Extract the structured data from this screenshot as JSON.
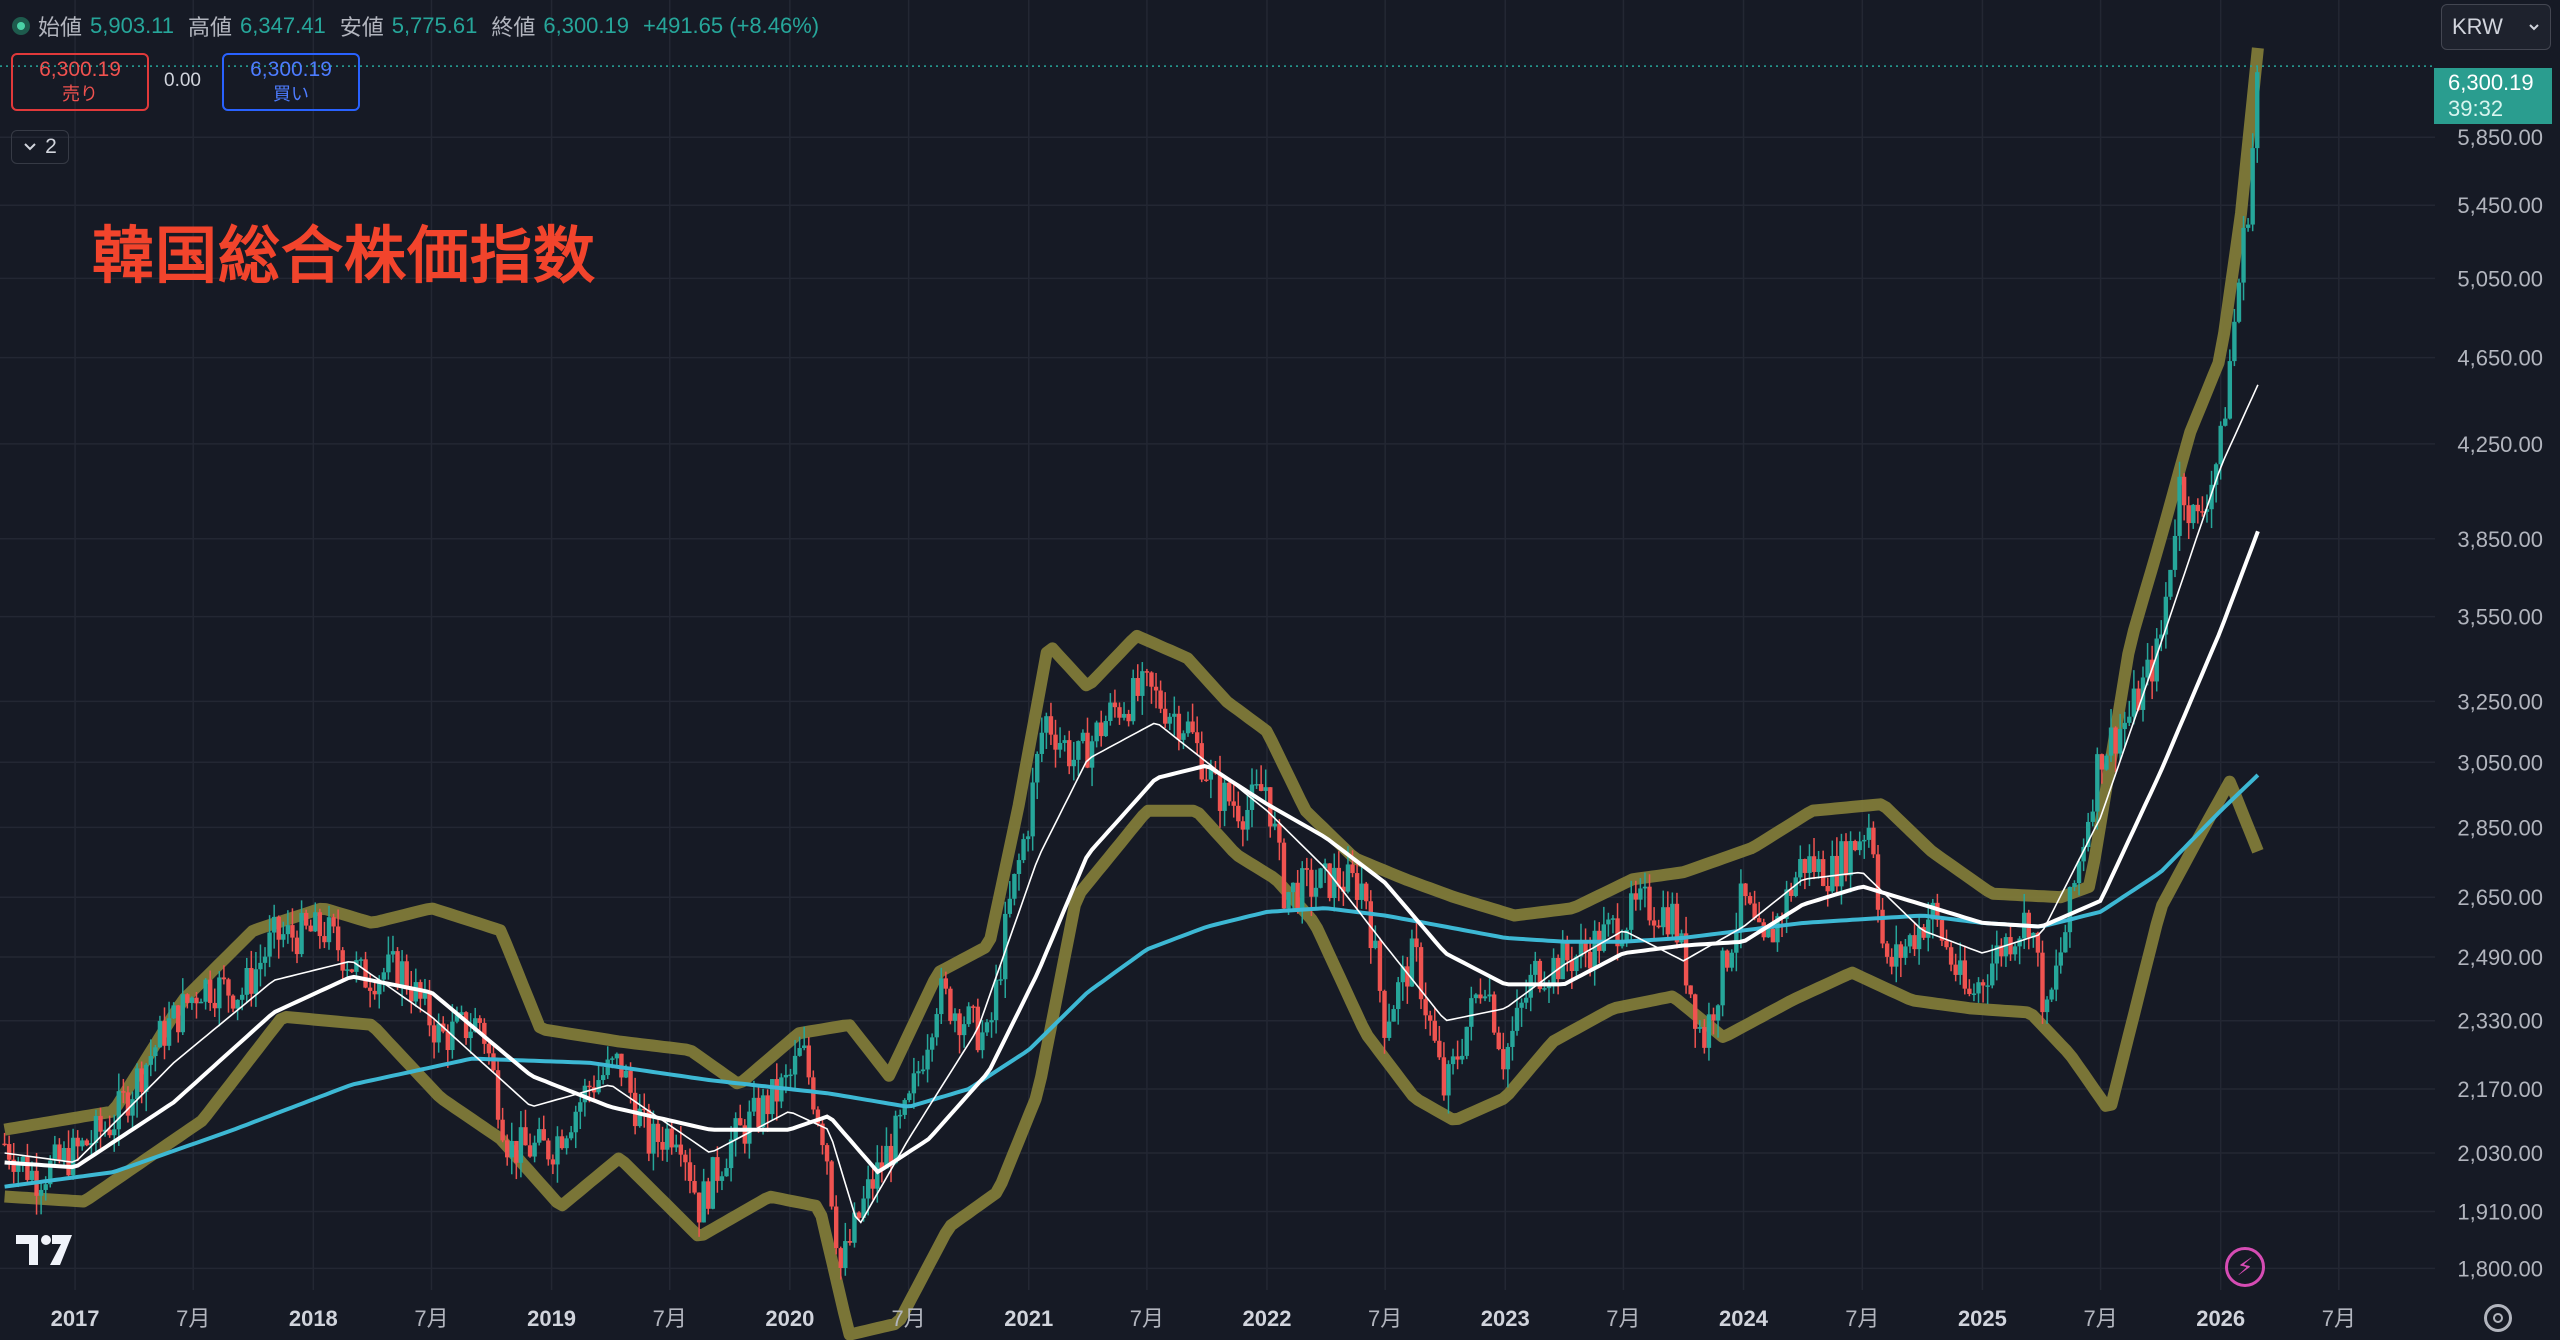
{
  "header": {
    "open_label": "始値",
    "open": "5,903.11",
    "high_label": "高値",
    "high": "6,347.41",
    "low_label": "安値",
    "low": "5,775.61",
    "close_label": "終値",
    "close": "6,300.19",
    "change": "+491.65 (+8.46%)"
  },
  "trade": {
    "sell_price": "6,300.19",
    "sell_label": "売り",
    "spread": "0.00",
    "buy_price": "6,300.19",
    "buy_label": "買い"
  },
  "collapse_count": "2",
  "currency": "KRW",
  "last_price_label": {
    "price": "6,300.19",
    "countdown": "39:32"
  },
  "colors": {
    "background": "#161a25",
    "grid": "#232733",
    "up": "#26a69a",
    "down": "#ef5350",
    "band": "#85803a",
    "ma200": "#3db8d4",
    "ma": "#ffffff",
    "title": "#f2442c"
  },
  "chart_data": {
    "type": "candlestick",
    "title": "韓国総合株価指数",
    "y_scale": "log",
    "ylim": [
      1760,
      6420
    ],
    "y_ticks": [
      6300.19,
      5850,
      5450,
      5050,
      4650,
      4250,
      3850,
      3550,
      3250,
      3050,
      2850,
      2650,
      2490,
      2330,
      2170,
      2030,
      1910,
      1800
    ],
    "y_tick_labels": [
      "",
      "5,850.00",
      "5,450.00",
      "5,050.00",
      "4,650.00",
      "4,250.00",
      "3,850.00",
      "3,550.00",
      "3,250.00",
      "3,050.00",
      "2,850.00",
      "2,650.00",
      "2,490.00",
      "2,330.00",
      "2,170.00",
      "2,030.00",
      "1,910.00",
      "1,800.00"
    ],
    "x_ticks": [
      {
        "date": "2017-01-01",
        "label": "2017",
        "bold": true
      },
      {
        "date": "2017-07-01",
        "label": "7月",
        "bold": false
      },
      {
        "date": "2018-01-01",
        "label": "2018",
        "bold": true
      },
      {
        "date": "2018-07-01",
        "label": "7月",
        "bold": false
      },
      {
        "date": "2019-01-01",
        "label": "2019",
        "bold": true
      },
      {
        "date": "2019-07-01",
        "label": "7月",
        "bold": false
      },
      {
        "date": "2020-01-01",
        "label": "2020",
        "bold": true
      },
      {
        "date": "2020-07-01",
        "label": "7月",
        "bold": false
      },
      {
        "date": "2021-01-01",
        "label": "2021",
        "bold": true
      },
      {
        "date": "2021-07-01",
        "label": "7月",
        "bold": false
      },
      {
        "date": "2022-01-01",
        "label": "2022",
        "bold": true
      },
      {
        "date": "2022-07-01",
        "label": "7月",
        "bold": false
      },
      {
        "date": "2023-01-01",
        "label": "2023",
        "bold": true
      },
      {
        "date": "2023-07-01",
        "label": "7月",
        "bold": false
      },
      {
        "date": "2024-01-01",
        "label": "2024",
        "bold": true
      },
      {
        "date": "2024-07-01",
        "label": "7月",
        "bold": false
      },
      {
        "date": "2025-01-01",
        "label": "2025",
        "bold": true
      },
      {
        "date": "2025-07-01",
        "label": "7月",
        "bold": false
      },
      {
        "date": "2026-01-01",
        "label": "2026",
        "bold": true
      },
      {
        "date": "2026-07-01",
        "label": "7月",
        "bold": false
      }
    ],
    "x_range": [
      "2016-09-08",
      "2026-11-10"
    ],
    "last_close": 6300.19,
    "close_series": [
      [
        "2016-09-15",
        2050
      ],
      [
        "2016-11-01",
        1980
      ],
      [
        "2017-01-01",
        2030
      ],
      [
        "2017-03-01",
        2100
      ],
      [
        "2017-05-15",
        2300
      ],
      [
        "2017-07-15",
        2420
      ],
      [
        "2017-09-15",
        2400
      ],
      [
        "2017-11-01",
        2540
      ],
      [
        "2018-01-20",
        2560
      ],
      [
        "2018-03-15",
        2440
      ],
      [
        "2018-05-15",
        2460
      ],
      [
        "2018-07-15",
        2290
      ],
      [
        "2018-09-15",
        2330
      ],
      [
        "2018-10-28",
        2040
      ],
      [
        "2018-12-31",
        2040
      ],
      [
        "2019-03-01",
        2180
      ],
      [
        "2019-04-15",
        2230
      ],
      [
        "2019-05-31",
        2050
      ],
      [
        "2019-07-15",
        2090
      ],
      [
        "2019-08-15",
        1920
      ],
      [
        "2019-10-01",
        2050
      ],
      [
        "2019-12-31",
        2190
      ],
      [
        "2020-01-20",
        2260
      ],
      [
        "2020-02-25",
        2050
      ],
      [
        "2020-03-19",
        1800
      ],
      [
        "2020-04-30",
        1950
      ],
      [
        "2020-06-30",
        2120
      ],
      [
        "2020-08-15",
        2400
      ],
      [
        "2020-10-31",
        2280
      ],
      [
        "2020-11-30",
        2600
      ],
      [
        "2020-12-31",
        2870
      ],
      [
        "2021-01-25",
        3200
      ],
      [
        "2021-03-15",
        3050
      ],
      [
        "2021-05-10",
        3220
      ],
      [
        "2021-06-30",
        3290
      ],
      [
        "2021-08-31",
        3170
      ],
      [
        "2021-10-15",
        2960
      ],
      [
        "2021-11-30",
        2900
      ],
      [
        "2021-12-31",
        2980
      ],
      [
        "2022-01-28",
        2660
      ],
      [
        "2022-04-15",
        2700
      ],
      [
        "2022-05-31",
        2680
      ],
      [
        "2022-06-30",
        2330
      ],
      [
        "2022-08-15",
        2500
      ],
      [
        "2022-09-30",
        2160
      ],
      [
        "2022-11-30",
        2450
      ],
      [
        "2022-12-30",
        2240
      ],
      [
        "2023-02-15",
        2450
      ],
      [
        "2023-04-30",
        2500
      ],
      [
        "2023-07-31",
        2630
      ],
      [
        "2023-09-15",
        2600
      ],
      [
        "2023-10-31",
        2280
      ],
      [
        "2023-12-31",
        2650
      ],
      [
        "2024-01-31",
        2500
      ],
      [
        "2024-03-31",
        2750
      ],
      [
        "2024-05-15",
        2720
      ],
      [
        "2024-07-15",
        2870
      ],
      [
        "2024-08-05",
        2450
      ],
      [
        "2024-10-15",
        2610
      ],
      [
        "2024-12-10",
        2380
      ],
      [
        "2025-01-31",
        2520
      ],
      [
        "2025-03-15",
        2600
      ],
      [
        "2025-04-09",
        2330
      ],
      [
        "2025-05-15",
        2620
      ],
      [
        "2025-06-30",
        3080
      ],
      [
        "2025-08-15",
        3200
      ],
      [
        "2025-09-30",
        3440
      ],
      [
        "2025-10-31",
        4100
      ],
      [
        "2025-11-25",
        3900
      ],
      [
        "2025-12-31",
        4220
      ],
      [
        "2026-01-31",
        5100
      ],
      [
        "2026-02-15",
        5550
      ],
      [
        "2026-02-27",
        6300.19
      ]
    ],
    "ma200_series": [
      [
        "2016-09-15",
        1960
      ],
      [
        "2017-03-01",
        1990
      ],
      [
        "2017-09-01",
        2080
      ],
      [
        "2018-03-01",
        2180
      ],
      [
        "2018-09-01",
        2240
      ],
      [
        "2019-03-01",
        2230
      ],
      [
        "2019-09-01",
        2190
      ],
      [
        "2020-03-01",
        2160
      ],
      [
        "2020-07-01",
        2130
      ],
      [
        "2020-10-01",
        2170
      ],
      [
        "2021-01-01",
        2260
      ],
      [
        "2021-04-01",
        2400
      ],
      [
        "2021-07-01",
        2510
      ],
      [
        "2021-10-01",
        2570
      ],
      [
        "2022-01-01",
        2610
      ],
      [
        "2022-04-01",
        2620
      ],
      [
        "2022-07-01",
        2600
      ],
      [
        "2022-10-01",
        2570
      ],
      [
        "2023-01-01",
        2540
      ],
      [
        "2023-04-01",
        2530
      ],
      [
        "2023-07-01",
        2530
      ],
      [
        "2023-10-01",
        2540
      ],
      [
        "2024-01-01",
        2560
      ],
      [
        "2024-04-01",
        2580
      ],
      [
        "2024-07-01",
        2590
      ],
      [
        "2024-10-01",
        2600
      ],
      [
        "2025-01-01",
        2580
      ],
      [
        "2025-04-01",
        2570
      ],
      [
        "2025-07-01",
        2610
      ],
      [
        "2025-10-01",
        2720
      ],
      [
        "2026-01-01",
        2900
      ],
      [
        "2026-02-27",
        3010
      ]
    ],
    "ma_slow_series": [
      [
        "2016-09-15",
        2010
      ],
      [
        "2017-01-01",
        2000
      ],
      [
        "2017-06-01",
        2140
      ],
      [
        "2017-11-01",
        2350
      ],
      [
        "2018-03-01",
        2440
      ],
      [
        "2018-07-01",
        2400
      ],
      [
        "2018-12-01",
        2200
      ],
      [
        "2019-04-01",
        2130
      ],
      [
        "2019-09-01",
        2080
      ],
      [
        "2019-12-31",
        2080
      ],
      [
        "2020-03-01",
        2110
      ],
      [
        "2020-05-15",
        1990
      ],
      [
        "2020-08-01",
        2060
      ],
      [
        "2020-11-01",
        2210
      ],
      [
        "2021-01-15",
        2450
      ],
      [
        "2021-04-01",
        2770
      ],
      [
        "2021-07-15",
        3000
      ],
      [
        "2021-10-01",
        3040
      ],
      [
        "2022-01-01",
        2920
      ],
      [
        "2022-04-01",
        2820
      ],
      [
        "2022-07-01",
        2690
      ],
      [
        "2022-10-01",
        2500
      ],
      [
        "2023-01-01",
        2420
      ],
      [
        "2023-04-01",
        2420
      ],
      [
        "2023-07-01",
        2500
      ],
      [
        "2023-10-01",
        2520
      ],
      [
        "2024-01-01",
        2530
      ],
      [
        "2024-04-01",
        2630
      ],
      [
        "2024-07-01",
        2680
      ],
      [
        "2024-10-01",
        2630
      ],
      [
        "2025-01-01",
        2580
      ],
      [
        "2025-04-01",
        2570
      ],
      [
        "2025-07-01",
        2640
      ],
      [
        "2025-10-01",
        3020
      ],
      [
        "2026-01-01",
        3500
      ],
      [
        "2026-02-27",
        3880
      ]
    ],
    "ma_fast_series": [
      [
        "2016-09-15",
        2030
      ],
      [
        "2017-01-01",
        2010
      ],
      [
        "2017-06-01",
        2230
      ],
      [
        "2017-11-01",
        2430
      ],
      [
        "2018-03-01",
        2480
      ],
      [
        "2018-07-01",
        2340
      ],
      [
        "2018-12-01",
        2130
      ],
      [
        "2019-04-01",
        2180
      ],
      [
        "2019-09-01",
        2030
      ],
      [
        "2019-12-31",
        2120
      ],
      [
        "2020-03-01",
        2080
      ],
      [
        "2020-04-15",
        1880
      ],
      [
        "2020-07-01",
        2060
      ],
      [
        "2020-10-15",
        2310
      ],
      [
        "2021-01-15",
        2760
      ],
      [
        "2021-04-01",
        3060
      ],
      [
        "2021-07-15",
        3180
      ],
      [
        "2021-10-01",
        3050
      ],
      [
        "2022-01-01",
        2900
      ],
      [
        "2022-04-01",
        2730
      ],
      [
        "2022-07-01",
        2520
      ],
      [
        "2022-10-01",
        2330
      ],
      [
        "2023-01-01",
        2360
      ],
      [
        "2023-04-01",
        2470
      ],
      [
        "2023-07-01",
        2560
      ],
      [
        "2023-10-01",
        2480
      ],
      [
        "2024-01-01",
        2570
      ],
      [
        "2024-04-01",
        2700
      ],
      [
        "2024-07-01",
        2720
      ],
      [
        "2024-10-01",
        2560
      ],
      [
        "2025-01-01",
        2500
      ],
      [
        "2025-04-01",
        2550
      ],
      [
        "2025-07-01",
        2880
      ],
      [
        "2025-10-01",
        3450
      ],
      [
        "2026-01-01",
        4150
      ],
      [
        "2026-02-27",
        4520
      ]
    ],
    "band_top": [
      [
        "2016-09-15",
        2080
      ],
      [
        "2017-03-01",
        2120
      ],
      [
        "2017-06-15",
        2380
      ],
      [
        "2017-10-01",
        2560
      ],
      [
        "2018-01-15",
        2620
      ],
      [
        "2018-04-01",
        2580
      ],
      [
        "2018-07-01",
        2620
      ],
      [
        "2018-10-15",
        2560
      ],
      [
        "2018-12-15",
        2310
      ],
      [
        "2019-04-15",
        2280
      ],
      [
        "2019-08-01",
        2260
      ],
      [
        "2019-10-15",
        2180
      ],
      [
        "2020-01-15",
        2300
      ],
      [
        "2020-04-01",
        2320
      ],
      [
        "2020-06-01",
        2200
      ],
      [
        "2020-08-15",
        2450
      ],
      [
        "2020-11-01",
        2520
      ],
      [
        "2020-12-15",
        2900
      ],
      [
        "2021-01-31",
        3450
      ],
      [
        "2021-04-01",
        3300
      ],
      [
        "2021-06-15",
        3480
      ],
      [
        "2021-09-01",
        3400
      ],
      [
        "2021-10-31",
        3250
      ],
      [
        "2022-01-01",
        3150
      ],
      [
        "2022-03-01",
        2900
      ],
      [
        "2022-05-15",
        2760
      ],
      [
        "2022-08-01",
        2700
      ],
      [
        "2022-10-15",
        2650
      ],
      [
        "2023-01-15",
        2600
      ],
      [
        "2023-04-15",
        2620
      ],
      [
        "2023-07-15",
        2700
      ],
      [
        "2023-10-01",
        2720
      ],
      [
        "2024-01-15",
        2790
      ],
      [
        "2024-04-15",
        2900
      ],
      [
        "2024-08-01",
        2920
      ],
      [
        "2024-10-15",
        2780
      ],
      [
        "2025-01-15",
        2660
      ],
      [
        "2025-05-01",
        2650
      ],
      [
        "2025-06-15",
        2680
      ],
      [
        "2025-08-15",
        3450
      ],
      [
        "2025-10-01",
        3850
      ],
      [
        "2025-11-15",
        4300
      ],
      [
        "2026-01-01",
        4650
      ],
      [
        "2026-02-01",
        5400
      ],
      [
        "2026-02-27",
        6420
      ]
    ],
    "band_bottom": [
      [
        "2016-09-15",
        1940
      ],
      [
        "2017-01-15",
        1930
      ],
      [
        "2017-07-15",
        2100
      ],
      [
        "2017-11-15",
        2340
      ],
      [
        "2018-04-01",
        2320
      ],
      [
        "2018-07-15",
        2150
      ],
      [
        "2018-10-15",
        2060
      ],
      [
        "2019-01-15",
        1920
      ],
      [
        "2019-04-15",
        2020
      ],
      [
        "2019-08-15",
        1860
      ],
      [
        "2019-12-01",
        1940
      ],
      [
        "2020-02-15",
        1920
      ],
      [
        "2020-04-01",
        1680
      ],
      [
        "2020-06-15",
        1700
      ],
      [
        "2020-09-01",
        1880
      ],
      [
        "2020-11-15",
        1950
      ],
      [
        "2021-01-15",
        2160
      ],
      [
        "2021-03-15",
        2650
      ],
      [
        "2021-07-01",
        2900
      ],
      [
        "2021-09-15",
        2900
      ],
      [
        "2021-11-15",
        2770
      ],
      [
        "2022-01-15",
        2700
      ],
      [
        "2022-03-15",
        2580
      ],
      [
        "2022-06-01",
        2300
      ],
      [
        "2022-08-15",
        2150
      ],
      [
        "2022-10-15",
        2100
      ],
      [
        "2023-01-01",
        2150
      ],
      [
        "2023-03-15",
        2280
      ],
      [
        "2023-06-15",
        2360
      ],
      [
        "2023-09-15",
        2390
      ],
      [
        "2023-12-01",
        2290
      ],
      [
        "2024-03-15",
        2380
      ],
      [
        "2024-06-15",
        2450
      ],
      [
        "2024-09-15",
        2380
      ],
      [
        "2024-12-15",
        2360
      ],
      [
        "2025-03-15",
        2350
      ],
      [
        "2025-05-15",
        2250
      ],
      [
        "2025-07-15",
        2120
      ],
      [
        "2025-10-01",
        2620
      ],
      [
        "2025-12-01",
        2830
      ],
      [
        "2026-01-15",
        2990
      ],
      [
        "2026-02-27",
        2780
      ]
    ]
  }
}
